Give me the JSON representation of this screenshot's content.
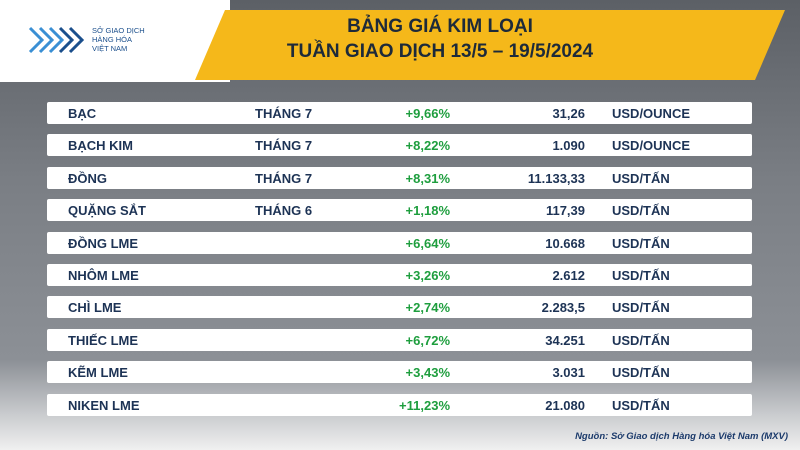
{
  "header": {
    "logo_text": [
      "SỞ GIAO DỊCH",
      "HÀNG HÓA",
      "VIỆT NAM"
    ],
    "title": [
      "BẢNG GIÁ KIM LOẠI",
      "TUẦN GIAO DỊCH 13/5 – 19/5/2024"
    ]
  },
  "table": {
    "rows": [
      {
        "name": "BẠC",
        "month": "THÁNG 7",
        "change": "+9,66%",
        "price": "31,26",
        "unit": "USD/OUNCE"
      },
      {
        "name": "BẠCH KIM",
        "month": "THÁNG 7",
        "change": "+8,22%",
        "price": "1.090",
        "unit": "USD/OUNCE"
      },
      {
        "name": "ĐỒNG",
        "month": "THÁNG 7",
        "change": "+8,31%",
        "price": "11.133,33",
        "unit": "USD/TẤN"
      },
      {
        "name": "QUẶNG SẮT",
        "month": "THÁNG 6",
        "change": "+1,18%",
        "price": "117,39",
        "unit": "USD/TẤN"
      },
      {
        "name": "ĐỒNG LME",
        "change": "+6,64%",
        "price": "10.668",
        "unit": "USD/TẤN"
      },
      {
        "name": "NHÔM LME",
        "change": "+3,26%",
        "price": "2.612",
        "unit": "USD/TẤN"
      },
      {
        "name": "CHÌ LME",
        "change": "+2,74%",
        "price": "2.283,5",
        "unit": "USD/TẤN"
      },
      {
        "name": "THIẾC LME",
        "change": "+6,72%",
        "price": "34.251",
        "unit": "USD/TẤN"
      },
      {
        "name": "KẼM LME",
        "change": "+3,43%",
        "price": "3.031",
        "unit": "USD/TẤN"
      },
      {
        "name": "NIKEN LME",
        "change": "+11,23%",
        "price": "21.080",
        "unit": "USD/TẤN"
      }
    ]
  },
  "source": "Nguồn: Sở Giao dịch Hàng hóa Việt Nam (MXV)"
}
